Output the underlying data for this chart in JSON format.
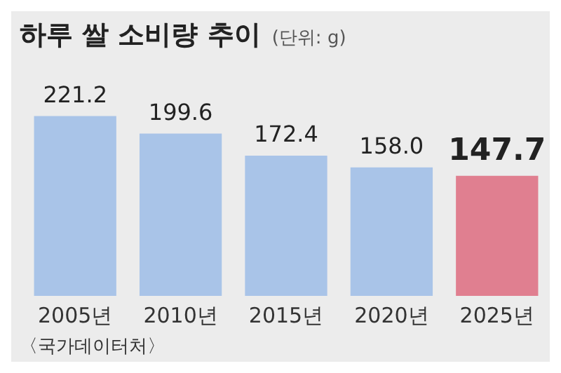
{
  "chart_data": {
    "type": "bar",
    "title": "하루 쌀 소비량 추이",
    "subtitle": "(단위: g)",
    "categories": [
      "2005년",
      "2010년",
      "2015년",
      "2020년",
      "2025년"
    ],
    "values": [
      221.2,
      199.6,
      172.4,
      158.0,
      147.7
    ],
    "value_labels": [
      "221.2",
      "199.6",
      "172.4",
      "158.0",
      "147.7"
    ],
    "colors": [
      "#a9c4e8",
      "#a9c4e8",
      "#a9c4e8",
      "#a9c4e8",
      "#e07f90"
    ],
    "annotations": [
      "〈국가데이터처〉"
    ],
    "relative": false,
    "grid": false,
    "legend": false
  }
}
